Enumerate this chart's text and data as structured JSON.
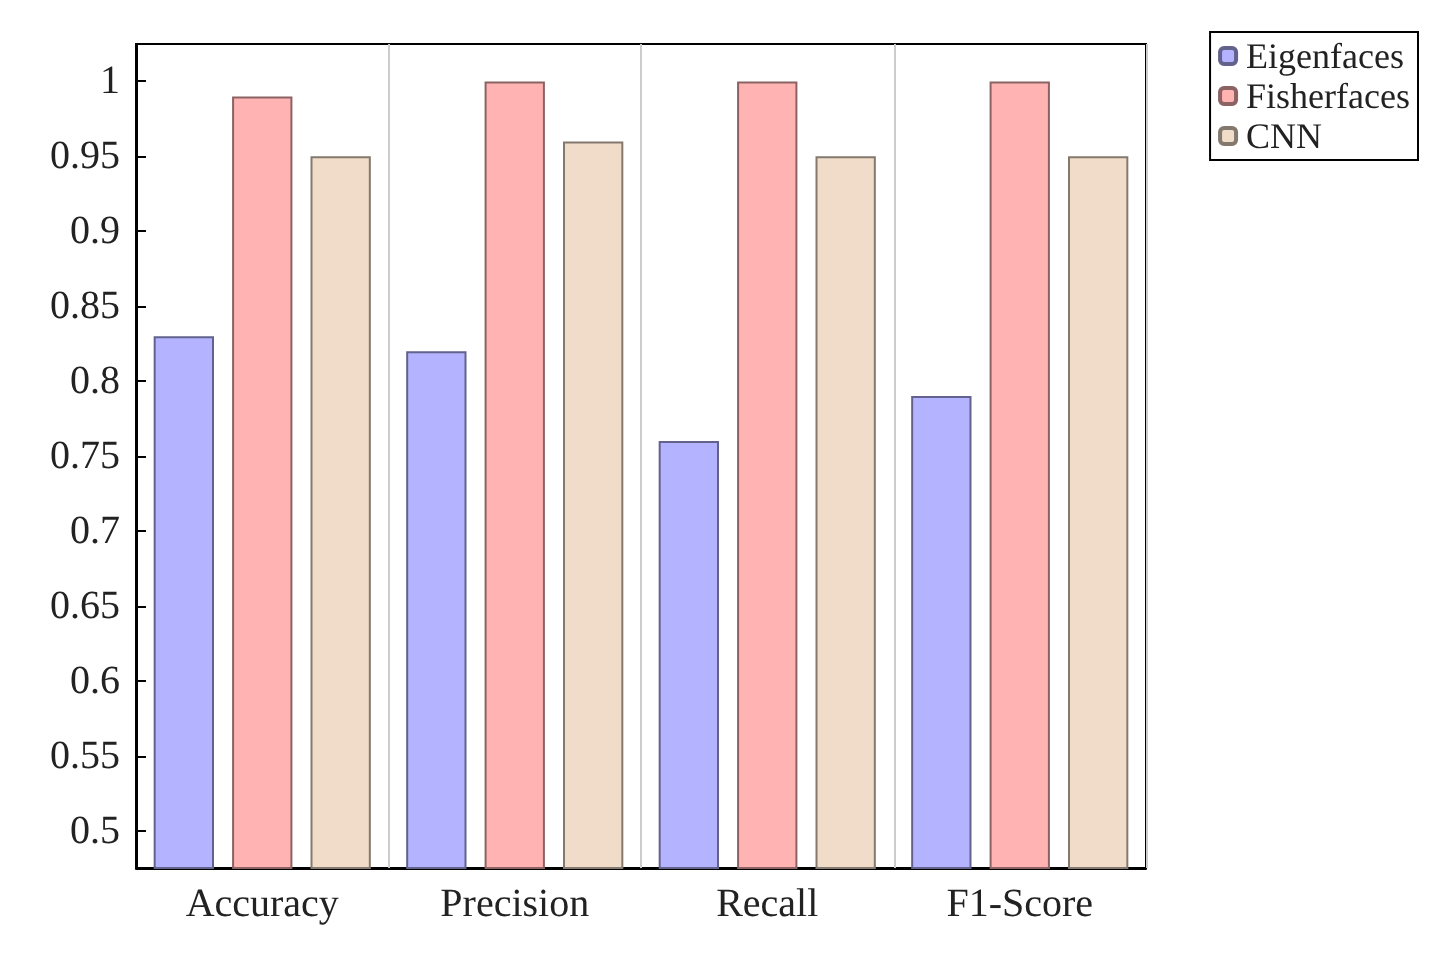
{
  "chart_data": {
    "type": "bar",
    "categories": [
      "Accuracy",
      "Precision",
      "Recall",
      "F1-Score"
    ],
    "series": [
      {
        "name": "Eigenfaces",
        "color": "#b3b3ff",
        "values": [
          0.83,
          0.82,
          0.76,
          0.79
        ]
      },
      {
        "name": "Fisherfaces",
        "color": "#ffb3b3",
        "values": [
          0.99,
          1,
          1,
          1
        ]
      },
      {
        "name": "CNN",
        "color": "#f0dcc8",
        "values": [
          0.95,
          0.96,
          0.95,
          0.95
        ]
      }
    ],
    "ylim": [
      0.475,
      1.025
    ],
    "yticks": [
      0.5,
      0.55,
      0.6,
      0.65,
      0.7,
      0.75,
      0.8,
      0.85,
      0.9,
      0.95,
      1
    ],
    "grid": "x",
    "legend": "top right"
  }
}
